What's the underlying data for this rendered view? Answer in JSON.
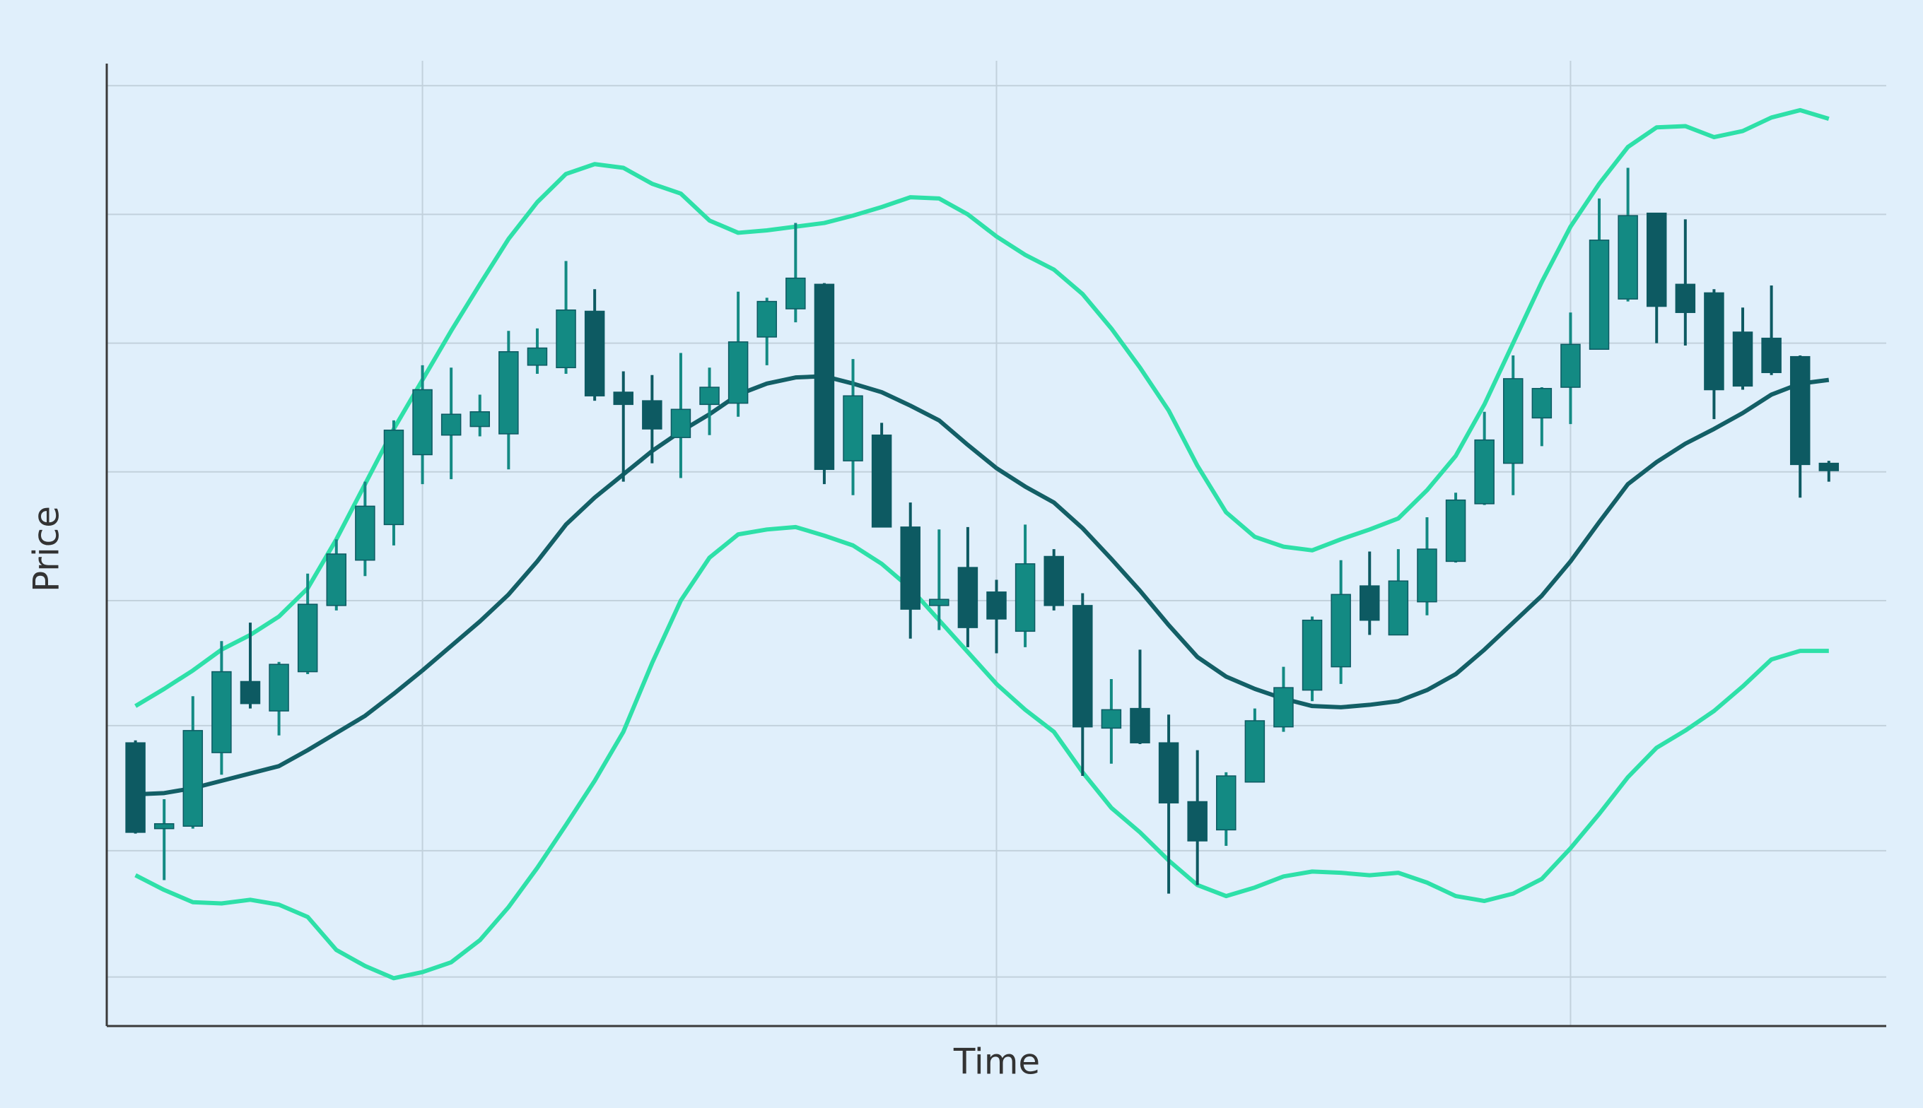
{
  "chart_data": {
    "type": "candlestick",
    "xlabel": "Time",
    "ylabel": "Price",
    "x": [
      0,
      1,
      2,
      3,
      4,
      5,
      6,
      7,
      8,
      9,
      10,
      11,
      12,
      13,
      14,
      15,
      16,
      17,
      18,
      19,
      20,
      21,
      22,
      23,
      24,
      25,
      26,
      27,
      28,
      29,
      30,
      31,
      32,
      33,
      34,
      35,
      36,
      37,
      38,
      39,
      40,
      41,
      42,
      43,
      44,
      45,
      46,
      47,
      48,
      49,
      50,
      51,
      52,
      53,
      54,
      55,
      56,
      57,
      58,
      59
    ],
    "open": [
      23.1,
      16.1,
      16.3,
      22.3,
      28.1,
      25.7,
      28.9,
      34.3,
      38.0,
      40.9,
      46.6,
      48.2,
      48.9,
      48.3,
      53.9,
      53.7,
      58.3,
      51.7,
      51.0,
      48.0,
      50.7,
      50.8,
      56.2,
      58.5,
      60.5,
      46.1,
      48.2,
      40.7,
      34.3,
      37.4,
      35.4,
      32.2,
      38.3,
      34.3,
      24.3,
      25.9,
      23.1,
      18.3,
      16.0,
      19.9,
      24.4,
      27.4,
      29.3,
      35.9,
      31.9,
      34.6,
      37.9,
      42.6,
      45.9,
      49.6,
      52.1,
      55.2,
      59.3,
      66.3,
      60.5,
      59.8,
      56.6,
      56.1,
      54.6,
      45.9
    ],
    "high": [
      23.3,
      18.5,
      26.9,
      31.4,
      32.9,
      29.7,
      36.9,
      39.7,
      44.4,
      49.4,
      53.9,
      53.7,
      51.5,
      56.7,
      56.9,
      62.4,
      60.1,
      53.4,
      53.1,
      54.9,
      53.7,
      59.9,
      59.4,
      65.5,
      60.6,
      54.4,
      49.2,
      42.7,
      40.5,
      40.7,
      36.4,
      40.9,
      38.9,
      35.3,
      28.3,
      30.7,
      25.4,
      22.5,
      20.7,
      25.9,
      29.3,
      33.4,
      38.0,
      38.7,
      38.9,
      41.5,
      43.5,
      50.1,
      54.7,
      52.1,
      58.2,
      67.5,
      70.0,
      66.3,
      65.8,
      60.1,
      58.6,
      60.4,
      54.7,
      46.1
    ],
    "low": [
      15.7,
      11.9,
      16.1,
      20.5,
      25.9,
      23.7,
      28.7,
      33.9,
      36.7,
      39.2,
      44.2,
      44.6,
      48.1,
      45.4,
      53.2,
      53.2,
      51.0,
      44.4,
      45.9,
      44.7,
      48.2,
      49.7,
      53.9,
      57.4,
      44.2,
      43.3,
      40.7,
      31.6,
      32.3,
      30.9,
      30.4,
      30.9,
      33.9,
      20.4,
      21.4,
      23.0,
      10.8,
      11.5,
      14.7,
      19.9,
      24.0,
      26.5,
      27.9,
      31.9,
      31.9,
      33.5,
      37.8,
      42.5,
      43.3,
      47.3,
      49.1,
      55.2,
      59.1,
      55.7,
      55.5,
      49.5,
      51.9,
      53.1,
      43.1,
      44.4
    ],
    "close": [
      15.8,
      16.5,
      24.1,
      28.9,
      26.3,
      29.5,
      34.4,
      38.5,
      42.4,
      48.6,
      51.9,
      49.9,
      50.1,
      55.0,
      55.3,
      58.4,
      51.4,
      50.7,
      48.7,
      50.3,
      52.1,
      55.8,
      59.1,
      61.0,
      45.4,
      51.4,
      40.7,
      34.0,
      34.8,
      32.5,
      33.2,
      37.7,
      34.3,
      24.4,
      25.8,
      23.1,
      18.2,
      15.1,
      20.4,
      24.9,
      27.6,
      33.1,
      35.2,
      33.1,
      36.3,
      38.9,
      42.9,
      47.8,
      52.8,
      52.0,
      55.6,
      64.1,
      66.1,
      58.7,
      58.2,
      51.9,
      52.2,
      53.3,
      45.8,
      45.3
    ],
    "up_color": "#138a83",
    "down_color": "#0d5a62",
    "series": [
      {
        "color": "#2ee0a8",
        "values": [
          26.1,
          27.5,
          29.0,
          30.7,
          31.9,
          33.4,
          35.7,
          39.7,
          44.2,
          48.7,
          52.7,
          56.7,
          60.5,
          64.2,
          67.2,
          69.5,
          70.3,
          70.0,
          68.7,
          67.9,
          65.7,
          64.7,
          64.9,
          65.2,
          65.5,
          66.1,
          66.8,
          67.6,
          67.5,
          66.2,
          64.4,
          62.9,
          61.7,
          59.7,
          56.9,
          53.7,
          50.2,
          45.7,
          41.9,
          39.9,
          39.1,
          38.8,
          39.7,
          40.5,
          41.4,
          43.7,
          46.5,
          50.7,
          55.7,
          60.7,
          65.2,
          68.7,
          71.7,
          73.3,
          73.4,
          72.5,
          73.0,
          74.1,
          74.7,
          74.0
        ]
      },
      {
        "color": "#135f66",
        "values": [
          18.9,
          19.0,
          19.4,
          20.0,
          20.6,
          21.2,
          22.5,
          23.9,
          25.3,
          27.1,
          29.0,
          31.0,
          33.0,
          35.2,
          37.9,
          40.9,
          43.1,
          45.0,
          46.9,
          48.5,
          49.9,
          51.5,
          52.4,
          52.9,
          53.0,
          52.4,
          51.7,
          50.6,
          49.4,
          47.4,
          45.5,
          44.0,
          42.7,
          40.6,
          38.1,
          35.5,
          32.7,
          30.1,
          28.5,
          27.5,
          26.7,
          26.1,
          26.0,
          26.2,
          26.5,
          27.4,
          28.7,
          30.7,
          32.9,
          35.1,
          37.9,
          41.1,
          44.2,
          46.0,
          47.5,
          48.7,
          50.0,
          51.5,
          52.4,
          52.7
        ]
      },
      {
        "color": "#2ee0a8",
        "values": [
          12.3,
          11.1,
          10.1,
          10.0,
          10.3,
          9.9,
          8.9,
          6.2,
          4.9,
          3.9,
          4.4,
          5.2,
          7.0,
          9.7,
          12.9,
          16.4,
          20.0,
          24.0,
          29.6,
          34.7,
          38.2,
          40.1,
          40.5,
          40.7,
          40.0,
          39.2,
          37.7,
          35.7,
          33.1,
          30.5,
          27.9,
          25.8,
          24.0,
          20.7,
          17.8,
          15.8,
          13.5,
          11.5,
          10.6,
          11.3,
          12.2,
          12.6,
          12.5,
          12.3,
          12.5,
          11.7,
          10.6,
          10.2,
          10.8,
          12.0,
          14.5,
          17.3,
          20.3,
          22.7,
          24.1,
          25.7,
          27.7,
          29.9,
          30.6,
          30.6
        ]
      }
    ],
    "xlim": [
      -1,
      61
    ],
    "xticks": [
      10,
      30,
      50
    ],
    "ylim": [
      0,
      78.5
    ],
    "yticks": [
      4.0,
      14.3,
      24.5,
      34.7,
      45.2,
      55.7,
      66.2,
      76.7
    ],
    "grid": true
  }
}
